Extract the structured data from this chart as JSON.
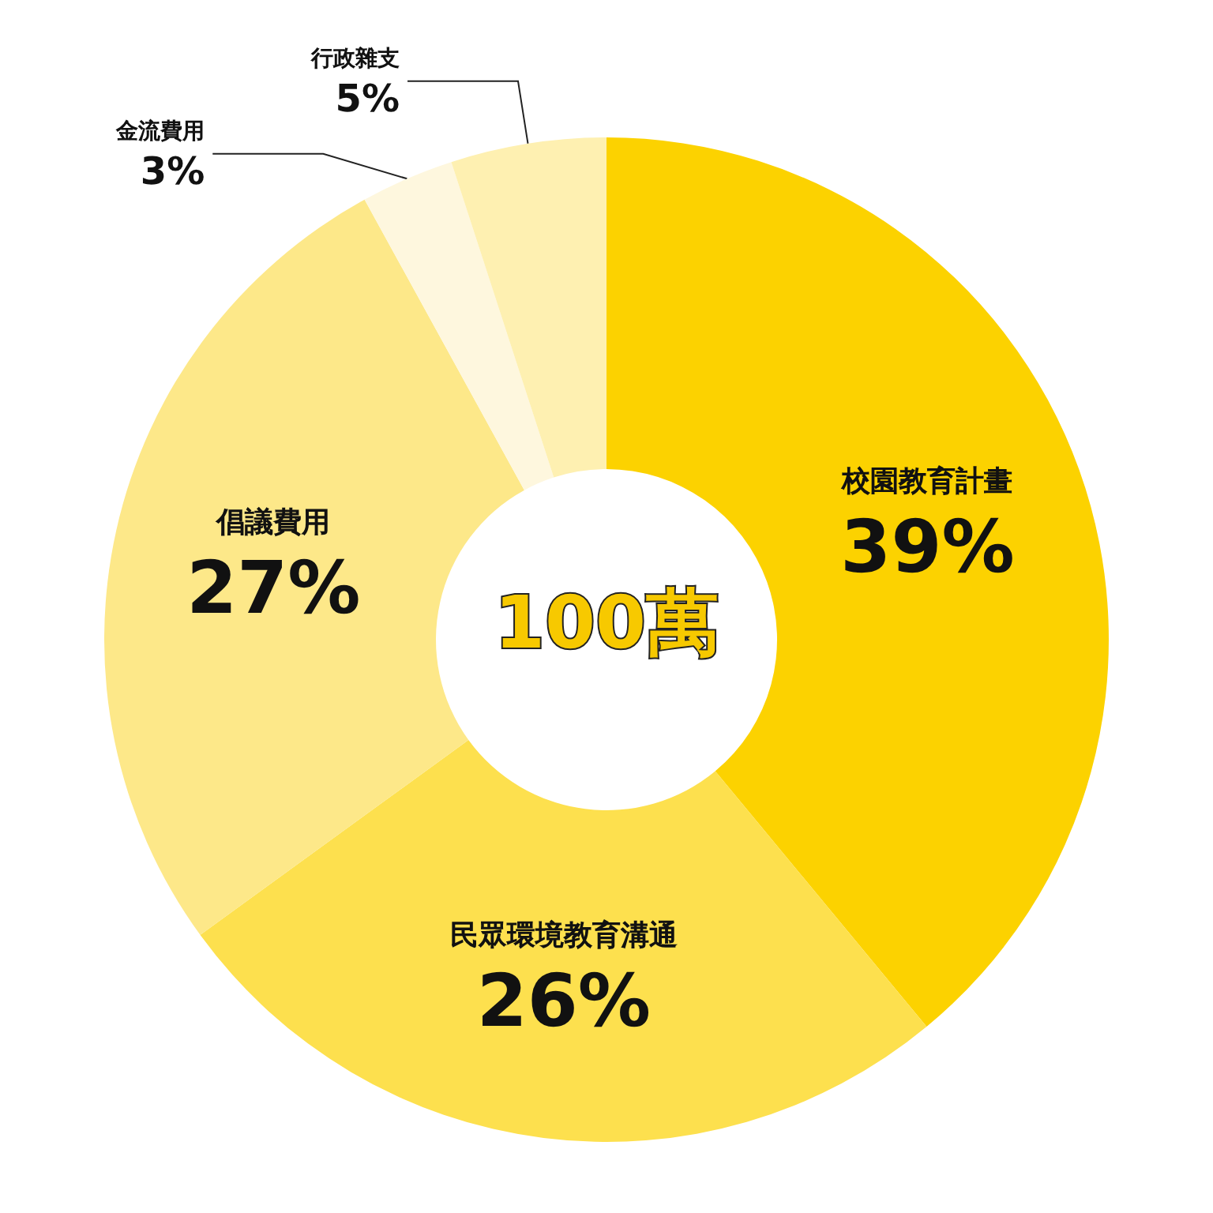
{
  "chart_data": {
    "type": "donut",
    "categories": [
      "校園教育計畫",
      "民眾環境教育溝通",
      "倡議費用",
      "金流費用",
      "行政雜支"
    ],
    "values": [
      39,
      26,
      27,
      3,
      5
    ],
    "value_labels": [
      "39%",
      "26%",
      "27%",
      "3%",
      "5%"
    ],
    "colors": [
      "#fcd200",
      "#fde04e",
      "#fde889",
      "#fef7de",
      "#fef0b1"
    ],
    "annotations": [
      "100萬"
    ],
    "legend": false
  }
}
